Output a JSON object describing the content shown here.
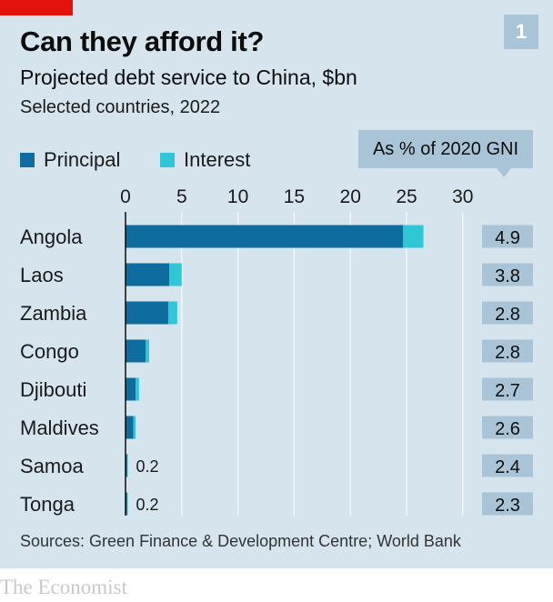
{
  "header": {
    "title": "Can they afford it?",
    "subtitle": "Projected debt service to China, $bn",
    "subsubtitle": "Selected countries, 2022",
    "chart_number": "1"
  },
  "legend": {
    "principal": "Principal",
    "interest": "Interest",
    "gni_header": "As % of 2020 GNI"
  },
  "colors": {
    "principal": "#0e6c9e",
    "interest": "#2fc6d6",
    "background": "#d6e4ee",
    "gni_box": "#a9c4d6",
    "brand_red": "#e3120b"
  },
  "chart_data": {
    "type": "bar",
    "orientation": "horizontal",
    "stacked": true,
    "categories": [
      "Angola",
      "Laos",
      "Zambia",
      "Congo",
      "Djibouti",
      "Maldives",
      "Samoa",
      "Tonga"
    ],
    "series": [
      {
        "name": "Principal",
        "values": [
          24.7,
          3.9,
          3.8,
          1.8,
          0.9,
          0.7,
          0.15,
          0.15
        ]
      },
      {
        "name": "Interest",
        "values": [
          1.8,
          1.1,
          0.8,
          0.3,
          0.3,
          0.2,
          0.05,
          0.05
        ]
      }
    ],
    "data_labels": [
      "",
      "",
      "",
      "",
      "",
      "",
      "0.2",
      "0.2"
    ],
    "gni_pct": [
      "4.9",
      "3.8",
      "2.8",
      "2.8",
      "2.7",
      "2.6",
      "2.4",
      "2.3"
    ],
    "xticks": [
      "0",
      "5",
      "10",
      "15",
      "20",
      "25",
      "30"
    ],
    "xlim": [
      0,
      30
    ],
    "grid": true,
    "legend_position": "top-left"
  },
  "footer": {
    "source": "Sources: Green Finance & Development Centre; World Bank",
    "brand": "The Economist"
  }
}
